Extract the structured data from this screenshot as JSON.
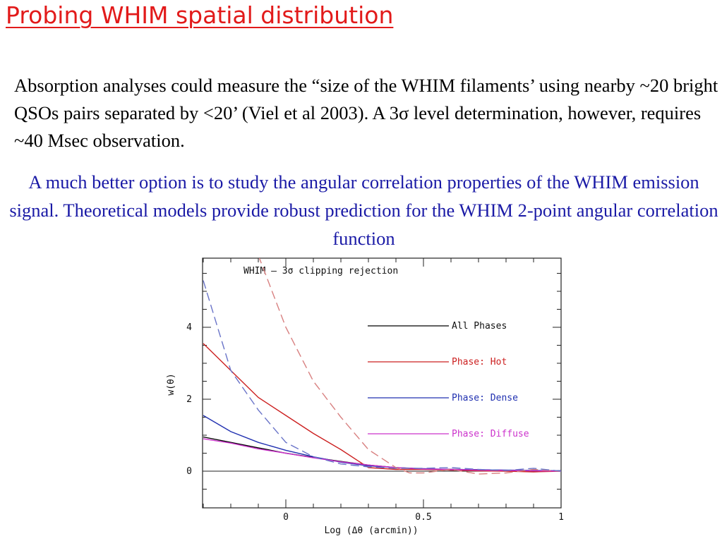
{
  "slide": {
    "title": "Probing WHIM spatial distribution",
    "paragraph1": "Absorption analyses could measure the “size of the WHIM filaments’ using nearby ~20 bright QSOs pairs separated by <20’ (Viel et al 2003). A 3σ level determination, however, requires ~40 Msec observation.",
    "paragraph2": "A much better option is to study the angular correlation properties of the WHIM emission signal. Theoretical models provide robust prediction  for the WHIM 2-point angular correlation function"
  },
  "chart_data": {
    "type": "line",
    "title": "WHIM – 3σ clipping rejection",
    "xlabel": "Log (Δθ (arcmin))",
    "ylabel": "w(θ)",
    "xlim": [
      -0.3,
      1.0
    ],
    "ylim": [
      -1.0,
      6.0
    ],
    "x_ticks": [
      0,
      0.5,
      1
    ],
    "x_tick_labels": [
      "0",
      "0.5",
      "1"
    ],
    "y_ticks": [
      0,
      2,
      4
    ],
    "y_tick_labels": [
      "0",
      "2",
      "4"
    ],
    "legend_position": "right",
    "series": [
      {
        "name": "All Phases",
        "color": "#000000",
        "dash": "solid",
        "x": [
          -0.3,
          -0.2,
          -0.1,
          0.0,
          0.1,
          0.2,
          0.3,
          0.4,
          0.5,
          0.6,
          0.7,
          0.8,
          0.9,
          1.0
        ],
        "y": [
          0.95,
          0.8,
          0.65,
          0.5,
          0.38,
          0.27,
          0.17,
          0.1,
          0.06,
          0.05,
          0.04,
          0.02,
          0.0,
          0.01
        ]
      },
      {
        "name": "Phase: Hot",
        "color": "#cc2020",
        "dash": "solid",
        "x": [
          -0.3,
          -0.2,
          -0.1,
          0.0,
          0.1,
          0.2,
          0.3,
          0.4,
          0.5,
          0.6,
          0.7,
          0.8,
          0.9,
          1.0
        ],
        "y": [
          3.55,
          2.8,
          2.05,
          1.55,
          1.05,
          0.6,
          0.1,
          0.05,
          0.05,
          0.03,
          0.01,
          0.0,
          -0.02,
          0.0
        ]
      },
      {
        "name": "Phase: Dense",
        "color": "#2030b0",
        "dash": "solid",
        "x": [
          -0.3,
          -0.2,
          -0.1,
          0.0,
          0.1,
          0.2,
          0.3,
          0.4,
          0.5,
          0.6,
          0.7,
          0.8,
          0.9,
          1.0
        ],
        "y": [
          1.55,
          1.1,
          0.8,
          0.58,
          0.4,
          0.25,
          0.15,
          0.1,
          0.07,
          0.05,
          0.04,
          0.03,
          0.02,
          0.01
        ]
      },
      {
        "name": "Phase: Diffuse",
        "color": "#cc33cc",
        "dash": "solid",
        "x": [
          -0.3,
          -0.2,
          -0.1,
          0.0,
          0.1,
          0.2,
          0.3,
          0.4,
          0.5,
          0.6,
          0.7,
          0.8,
          0.9,
          1.0
        ],
        "y": [
          0.9,
          0.78,
          0.62,
          0.5,
          0.37,
          0.26,
          0.17,
          0.1,
          0.06,
          0.05,
          0.03,
          0.02,
          0.01,
          0.0
        ]
      },
      {
        "name": "",
        "color": "#d88080",
        "dash": "dashed",
        "x": [
          -0.1,
          0.0,
          0.1,
          0.2,
          0.3,
          0.4,
          0.45,
          0.5,
          0.6,
          0.7,
          0.8,
          0.9,
          1.0
        ],
        "y": [
          6.0,
          4.0,
          2.5,
          1.5,
          0.6,
          0.1,
          -0.05,
          -0.05,
          0.05,
          -0.08,
          -0.05,
          0.05,
          0.0
        ]
      },
      {
        "name": "",
        "color": "#6a74c8",
        "dash": "dashed",
        "x": [
          -0.3,
          -0.2,
          -0.1,
          0.0,
          0.1,
          0.2,
          0.3,
          0.4,
          0.5,
          0.6,
          0.7,
          0.8,
          0.9,
          1.0
        ],
        "y": [
          5.3,
          2.8,
          1.7,
          0.8,
          0.4,
          0.2,
          0.12,
          0.08,
          0.08,
          0.1,
          0.05,
          0.02,
          0.08,
          0.0
        ]
      }
    ]
  }
}
